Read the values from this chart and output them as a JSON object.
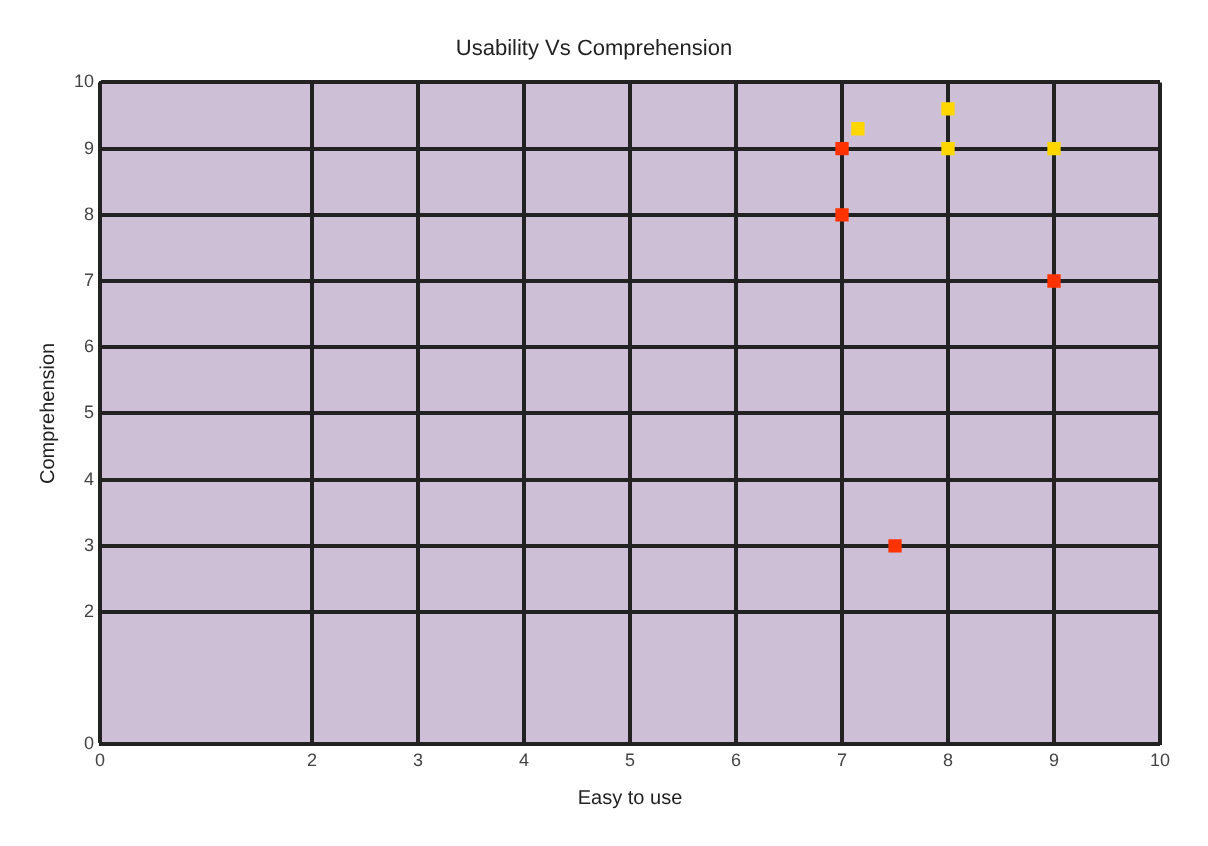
{
  "chart_data": {
    "type": "scatter",
    "title": "Usability Vs Comprehension",
    "xlabel": "Easy to use",
    "ylabel": "Comprehension",
    "xlim": [
      0,
      10
    ],
    "xticks": [
      0,
      2,
      3,
      4,
      5,
      6,
      7,
      8,
      9,
      10
    ],
    "ylim": [
      0,
      10
    ],
    "yticks": [
      0,
      2,
      3,
      4,
      5,
      6,
      7,
      8,
      9,
      10
    ],
    "grid": true,
    "legend": false,
    "marker": "square",
    "series": [
      {
        "color": "#ff3300",
        "x": [
          7,
          7,
          9,
          7.5
        ],
        "values": [
          9,
          8,
          7,
          3
        ]
      },
      {
        "color": "#ffd700",
        "x": [
          7.15,
          8,
          8,
          9
        ],
        "values": [
          9.3,
          9.6,
          9,
          9
        ]
      }
    ]
  }
}
